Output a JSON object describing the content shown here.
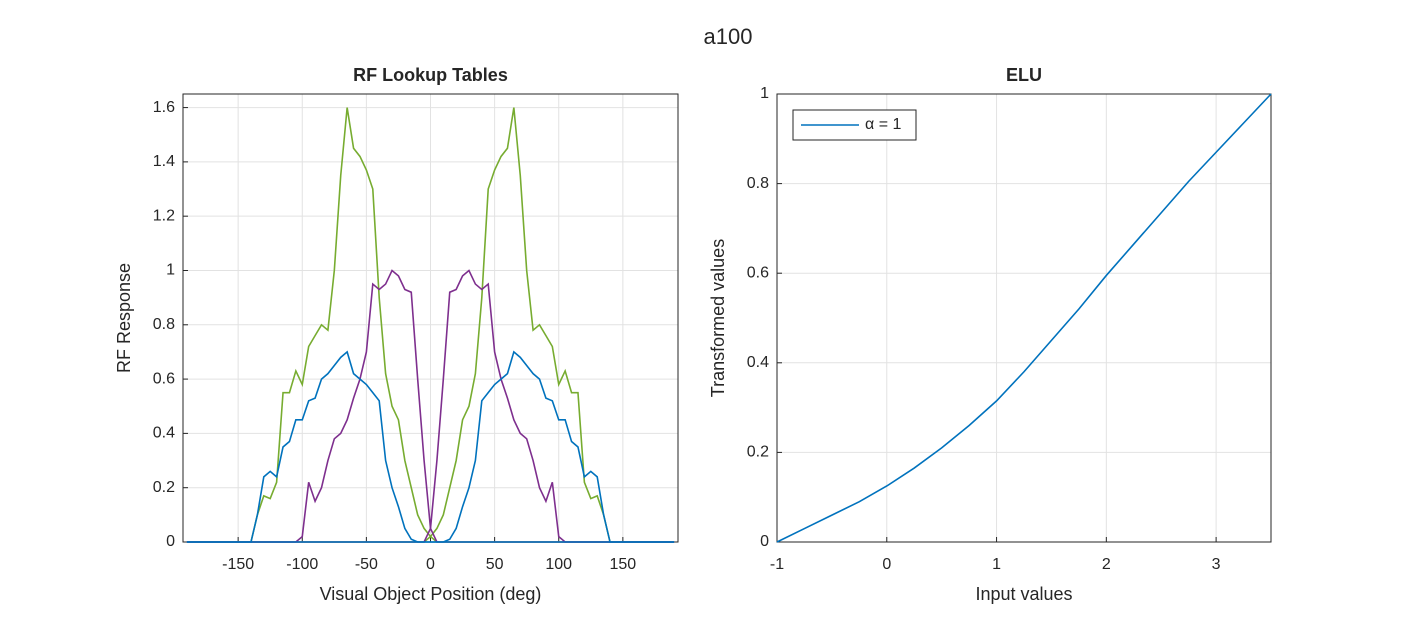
{
  "figure_title": "a100",
  "chart_data": [
    {
      "type": "line",
      "title": "RF Lookup Tables",
      "xlabel": "Visual Object Position (deg)",
      "ylabel": "RF Response",
      "xlim": [
        -193,
        193
      ],
      "xticks": [
        -150,
        -100,
        -50,
        0,
        50,
        100,
        150
      ],
      "ylim": [
        0,
        1.65
      ],
      "yticks": [
        0,
        0.2,
        0.4,
        0.6,
        0.8,
        1,
        1.2,
        1.4,
        1.6
      ],
      "grid": true,
      "x": [
        -190,
        -185,
        -180,
        -175,
        -170,
        -165,
        -160,
        -155,
        -150,
        -145,
        -140,
        -135,
        -130,
        -125,
        -120,
        -115,
        -110,
        -105,
        -100,
        -95,
        -90,
        -85,
        -80,
        -75,
        -70,
        -65,
        -60,
        -55,
        -50,
        -45,
        -40,
        -35,
        -30,
        -25,
        -20,
        -15,
        -10,
        -5,
        0,
        5,
        10,
        15,
        20,
        25,
        30,
        35,
        40,
        45,
        50,
        55,
        60,
        65,
        70,
        75,
        80,
        85,
        90,
        95,
        100,
        105,
        110,
        115,
        120,
        125,
        130,
        135,
        140,
        145,
        150,
        155,
        160,
        165,
        170,
        175,
        180,
        185,
        190
      ],
      "series": [
        {
          "color": "#77AC30",
          "values": [
            0,
            0,
            0,
            0,
            0,
            0,
            0,
            0,
            0,
            0,
            0,
            0.1,
            0.17,
            0.16,
            0.22,
            0.55,
            0.55,
            0.63,
            0.58,
            0.72,
            0.76,
            0.8,
            0.78,
            1.0,
            1.35,
            1.6,
            1.45,
            1.42,
            1.37,
            1.3,
            0.9,
            0.62,
            0.5,
            0.45,
            0.3,
            0.2,
            0.1,
            0.05,
            0.02,
            0,
            0,
            0,
            0,
            0,
            0,
            0,
            0,
            0,
            0,
            0,
            0,
            0,
            0,
            0,
            0,
            0,
            0,
            0,
            0,
            0,
            0,
            0,
            0,
            0,
            0,
            0,
            0,
            0,
            0,
            0,
            0,
            0,
            0,
            0,
            0,
            0,
            0
          ]
        },
        {
          "color": "#77AC30",
          "values": [
            0,
            0,
            0,
            0,
            0,
            0,
            0,
            0,
            0,
            0,
            0,
            0,
            0,
            0,
            0,
            0,
            0,
            0,
            0,
            0,
            0,
            0,
            0,
            0,
            0,
            0,
            0,
            0,
            0,
            0,
            0,
            0,
            0,
            0,
            0,
            0,
            0,
            0,
            0.02,
            0.05,
            0.1,
            0.2,
            0.3,
            0.45,
            0.5,
            0.62,
            0.9,
            1.3,
            1.37,
            1.42,
            1.45,
            1.6,
            1.35,
            1.0,
            0.78,
            0.8,
            0.76,
            0.72,
            0.58,
            0.63,
            0.55,
            0.55,
            0.22,
            0.16,
            0.17,
            0.1,
            0,
            0,
            0,
            0,
            0,
            0,
            0,
            0,
            0,
            0,
            0
          ]
        },
        {
          "color": "#7E2F8E",
          "values": [
            0,
            0,
            0,
            0,
            0,
            0,
            0,
            0,
            0,
            0,
            0,
            0,
            0,
            0,
            0,
            0,
            0,
            0,
            0.02,
            0.22,
            0.15,
            0.2,
            0.3,
            0.38,
            0.4,
            0.45,
            0.53,
            0.6,
            0.7,
            0.95,
            0.93,
            0.95,
            1.0,
            0.98,
            0.93,
            0.92,
            0.6,
            0.3,
            0.05,
            0,
            0,
            0,
            0,
            0,
            0,
            0,
            0,
            0,
            0,
            0,
            0,
            0,
            0,
            0,
            0,
            0,
            0,
            0,
            0,
            0,
            0,
            0,
            0,
            0,
            0,
            0,
            0,
            0,
            0,
            0,
            0,
            0,
            0,
            0,
            0,
            0,
            0
          ]
        },
        {
          "color": "#7E2F8E",
          "values": [
            0,
            0,
            0,
            0,
            0,
            0,
            0,
            0,
            0,
            0,
            0,
            0,
            0,
            0,
            0,
            0,
            0,
            0,
            0,
            0,
            0,
            0,
            0,
            0,
            0,
            0,
            0,
            0,
            0,
            0,
            0,
            0,
            0,
            0,
            0,
            0,
            0,
            0,
            0.05,
            0.3,
            0.6,
            0.92,
            0.93,
            0.98,
            1.0,
            0.95,
            0.93,
            0.95,
            0.7,
            0.6,
            0.53,
            0.45,
            0.4,
            0.38,
            0.3,
            0.2,
            0.15,
            0.22,
            0.02,
            0,
            0,
            0,
            0,
            0,
            0,
            0,
            0,
            0,
            0,
            0,
            0,
            0,
            0,
            0,
            0,
            0,
            0
          ]
        },
        {
          "color": "#0072BD",
          "values": [
            0,
            0,
            0,
            0,
            0,
            0,
            0,
            0,
            0,
            0,
            0,
            0.1,
            0.24,
            0.26,
            0.24,
            0.35,
            0.37,
            0.45,
            0.45,
            0.52,
            0.53,
            0.6,
            0.62,
            0.65,
            0.68,
            0.7,
            0.62,
            0.6,
            0.58,
            0.55,
            0.52,
            0.3,
            0.2,
            0.13,
            0.05,
            0.01,
            0,
            0,
            0,
            0,
            0,
            0,
            0,
            0,
            0,
            0,
            0,
            0,
            0,
            0,
            0,
            0,
            0,
            0,
            0,
            0,
            0,
            0,
            0,
            0,
            0,
            0,
            0,
            0,
            0,
            0,
            0,
            0,
            0,
            0,
            0,
            0,
            0,
            0,
            0,
            0,
            0
          ]
        },
        {
          "color": "#0072BD",
          "values": [
            0,
            0,
            0,
            0,
            0,
            0,
            0,
            0,
            0,
            0,
            0,
            0,
            0,
            0,
            0,
            0,
            0,
            0,
            0,
            0,
            0,
            0,
            0,
            0,
            0,
            0,
            0,
            0,
            0,
            0,
            0,
            0,
            0,
            0,
            0,
            0,
            0,
            0,
            0,
            0,
            0,
            0.01,
            0.05,
            0.13,
            0.2,
            0.3,
            0.52,
            0.55,
            0.58,
            0.6,
            0.62,
            0.7,
            0.68,
            0.65,
            0.62,
            0.6,
            0.53,
            0.52,
            0.45,
            0.45,
            0.37,
            0.35,
            0.24,
            0.26,
            0.24,
            0.1,
            0,
            0,
            0,
            0,
            0,
            0,
            0,
            0,
            0,
            0,
            0
          ]
        }
      ]
    },
    {
      "type": "line",
      "title": "ELU",
      "xlabel": "Input values",
      "ylabel": "Transformed values",
      "xlim": [
        -1,
        3.5
      ],
      "xticks": [
        -1,
        0,
        1,
        2,
        3
      ],
      "ylim": [
        0,
        1
      ],
      "yticks": [
        0,
        0.2,
        0.4,
        0.6,
        0.8,
        1
      ],
      "grid": true,
      "legend": "northwest",
      "x": [
        -1,
        -0.75,
        -0.5,
        -0.25,
        0,
        0.25,
        0.5,
        0.75,
        1,
        1.25,
        1.5,
        1.75,
        2,
        2.25,
        2.5,
        2.75,
        3,
        3.25,
        3.5
      ],
      "series": [
        {
          "name": "α = 1",
          "color": "#0072BD",
          "values": [
            0,
            0.03,
            0.06,
            0.09,
            0.125,
            0.165,
            0.21,
            0.26,
            0.315,
            0.38,
            0.45,
            0.52,
            0.595,
            0.665,
            0.735,
            0.805,
            0.87,
            0.935,
            1
          ]
        }
      ]
    }
  ]
}
